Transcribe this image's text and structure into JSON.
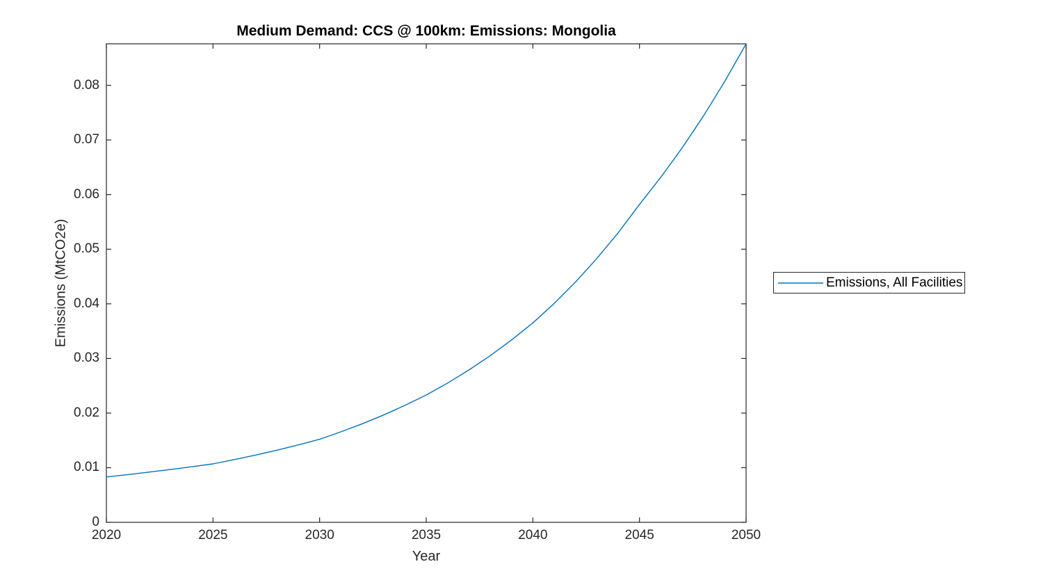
{
  "chart_data": {
    "type": "line",
    "title": "Medium Demand: CCS @ 100km: Emissions: Mongolia",
    "xlabel": "Year",
    "ylabel": "Emissions (MtCO2e)",
    "xlim": [
      2020,
      2050
    ],
    "ylim": [
      0,
      0.0876
    ],
    "xticks": [
      2020,
      2025,
      2030,
      2035,
      2040,
      2045,
      2050
    ],
    "xtick_labels": [
      "2020",
      "2025",
      "2030",
      "2035",
      "2040",
      "2045",
      "2050"
    ],
    "yticks": [
      0,
      0.01,
      0.02,
      0.03,
      0.04,
      0.05,
      0.06,
      0.07,
      0.08
    ],
    "ytick_labels": [
      "0",
      "0.01",
      "0.02",
      "0.03",
      "0.04",
      "0.05",
      "0.06",
      "0.07",
      "0.08"
    ],
    "grid": false,
    "legend_position": "outside-right",
    "axis_color": "#262626",
    "line_width": 1.4,
    "x": [
      2020,
      2021,
      2022,
      2023,
      2024,
      2025,
      2026,
      2027,
      2028,
      2029,
      2030,
      2031,
      2032,
      2033,
      2034,
      2035,
      2036,
      2037,
      2038,
      2039,
      2040,
      2041,
      2042,
      2043,
      2044,
      2045,
      2046,
      2047,
      2048,
      2049,
      2050
    ],
    "series": [
      {
        "name": "Emissions, All Facilities",
        "color": "#0072BD",
        "values": [
          0.0083,
          0.00873,
          0.00919,
          0.00967,
          0.01017,
          0.0107,
          0.01148,
          0.01231,
          0.01321,
          0.01417,
          0.0152,
          0.01656,
          0.01804,
          0.01965,
          0.0214,
          0.0233,
          0.02549,
          0.02789,
          0.03051,
          0.03338,
          0.0365,
          0.04007,
          0.04399,
          0.04829,
          0.05301,
          0.0582,
          0.06316,
          0.06854,
          0.07438,
          0.08071,
          0.0876
        ]
      }
    ]
  }
}
